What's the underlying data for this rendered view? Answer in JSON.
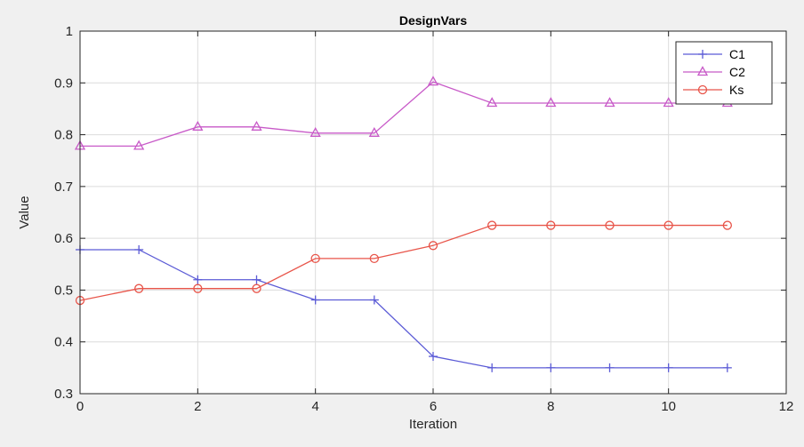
{
  "chart_data": {
    "type": "line",
    "title": "DesignVars",
    "xlabel": "Iteration",
    "ylabel": "Value",
    "xlim": [
      0,
      12
    ],
    "ylim": [
      0.3,
      1
    ],
    "xticks": [
      0,
      2,
      4,
      6,
      8,
      10,
      12
    ],
    "yticks": [
      0.3,
      0.4,
      0.5,
      0.6,
      0.7,
      0.8,
      0.9,
      1
    ],
    "xtick_labels": [
      "0",
      "2",
      "4",
      "6",
      "8",
      "10",
      "12"
    ],
    "ytick_labels": [
      "0.3",
      "0.4",
      "0.5",
      "0.6",
      "0.7",
      "0.8",
      "0.9",
      "1"
    ],
    "grid": true,
    "legend_position": "top-right",
    "x": [
      0,
      1,
      2,
      3,
      4,
      5,
      6,
      7,
      8,
      9,
      10,
      11
    ],
    "series": [
      {
        "name": "C1",
        "marker": "plus",
        "color": "#5b5bd6",
        "values": [
          0.578,
          0.578,
          0.52,
          0.52,
          0.481,
          0.481,
          0.372,
          0.35,
          0.35,
          0.35,
          0.35,
          0.35
        ]
      },
      {
        "name": "C2",
        "marker": "triangle",
        "color": "#c85ac8",
        "values": [
          0.778,
          0.778,
          0.815,
          0.815,
          0.803,
          0.803,
          0.902,
          0.861,
          0.861,
          0.861,
          0.861,
          0.861
        ]
      },
      {
        "name": "Ks",
        "marker": "circle",
        "color": "#e8554a",
        "values": [
          0.48,
          0.503,
          0.503,
          0.503,
          0.561,
          0.561,
          0.586,
          0.625,
          0.625,
          0.625,
          0.625,
          0.625
        ]
      }
    ]
  }
}
